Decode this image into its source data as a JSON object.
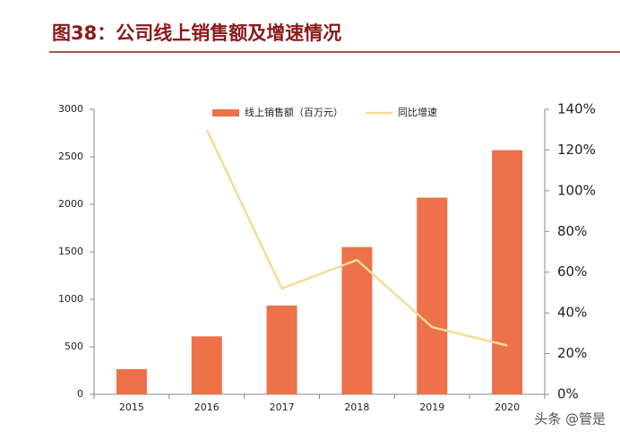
{
  "chart_data": {
    "type": "bar",
    "title": "图38：公司线上销售额及增速情况",
    "categories": [
      "2015",
      "2016",
      "2017",
      "2018",
      "2019",
      "2020"
    ],
    "series": [
      {
        "name": "线上销售额（百万元）",
        "type": "bar",
        "color": "#ed7149",
        "values": [
          265,
          610,
          935,
          1550,
          2070,
          2570
        ]
      },
      {
        "name": "同比增速",
        "type": "line",
        "axis": "y2",
        "color": "#f5dc96",
        "values": [
          null,
          130,
          52,
          66,
          33,
          24
        ]
      }
    ],
    "ylim": [
      0,
      3000
    ],
    "yticks": [
      0,
      500,
      1000,
      1500,
      2000,
      2500,
      3000
    ],
    "y2lim": [
      0,
      140
    ],
    "y2ticks": [
      {
        "value": 0,
        "label": "0%"
      },
      {
        "value": 20,
        "label": "20%"
      },
      {
        "value": 40,
        "label": "40%"
      },
      {
        "value": 60,
        "label": "60%"
      },
      {
        "value": 80,
        "label": "80%"
      },
      {
        "value": 100,
        "label": "100%"
      },
      {
        "value": 120,
        "label": "120%"
      },
      {
        "value": 140,
        "label": "140%"
      }
    ],
    "grid": false
  },
  "watermark": "头条 @管是"
}
